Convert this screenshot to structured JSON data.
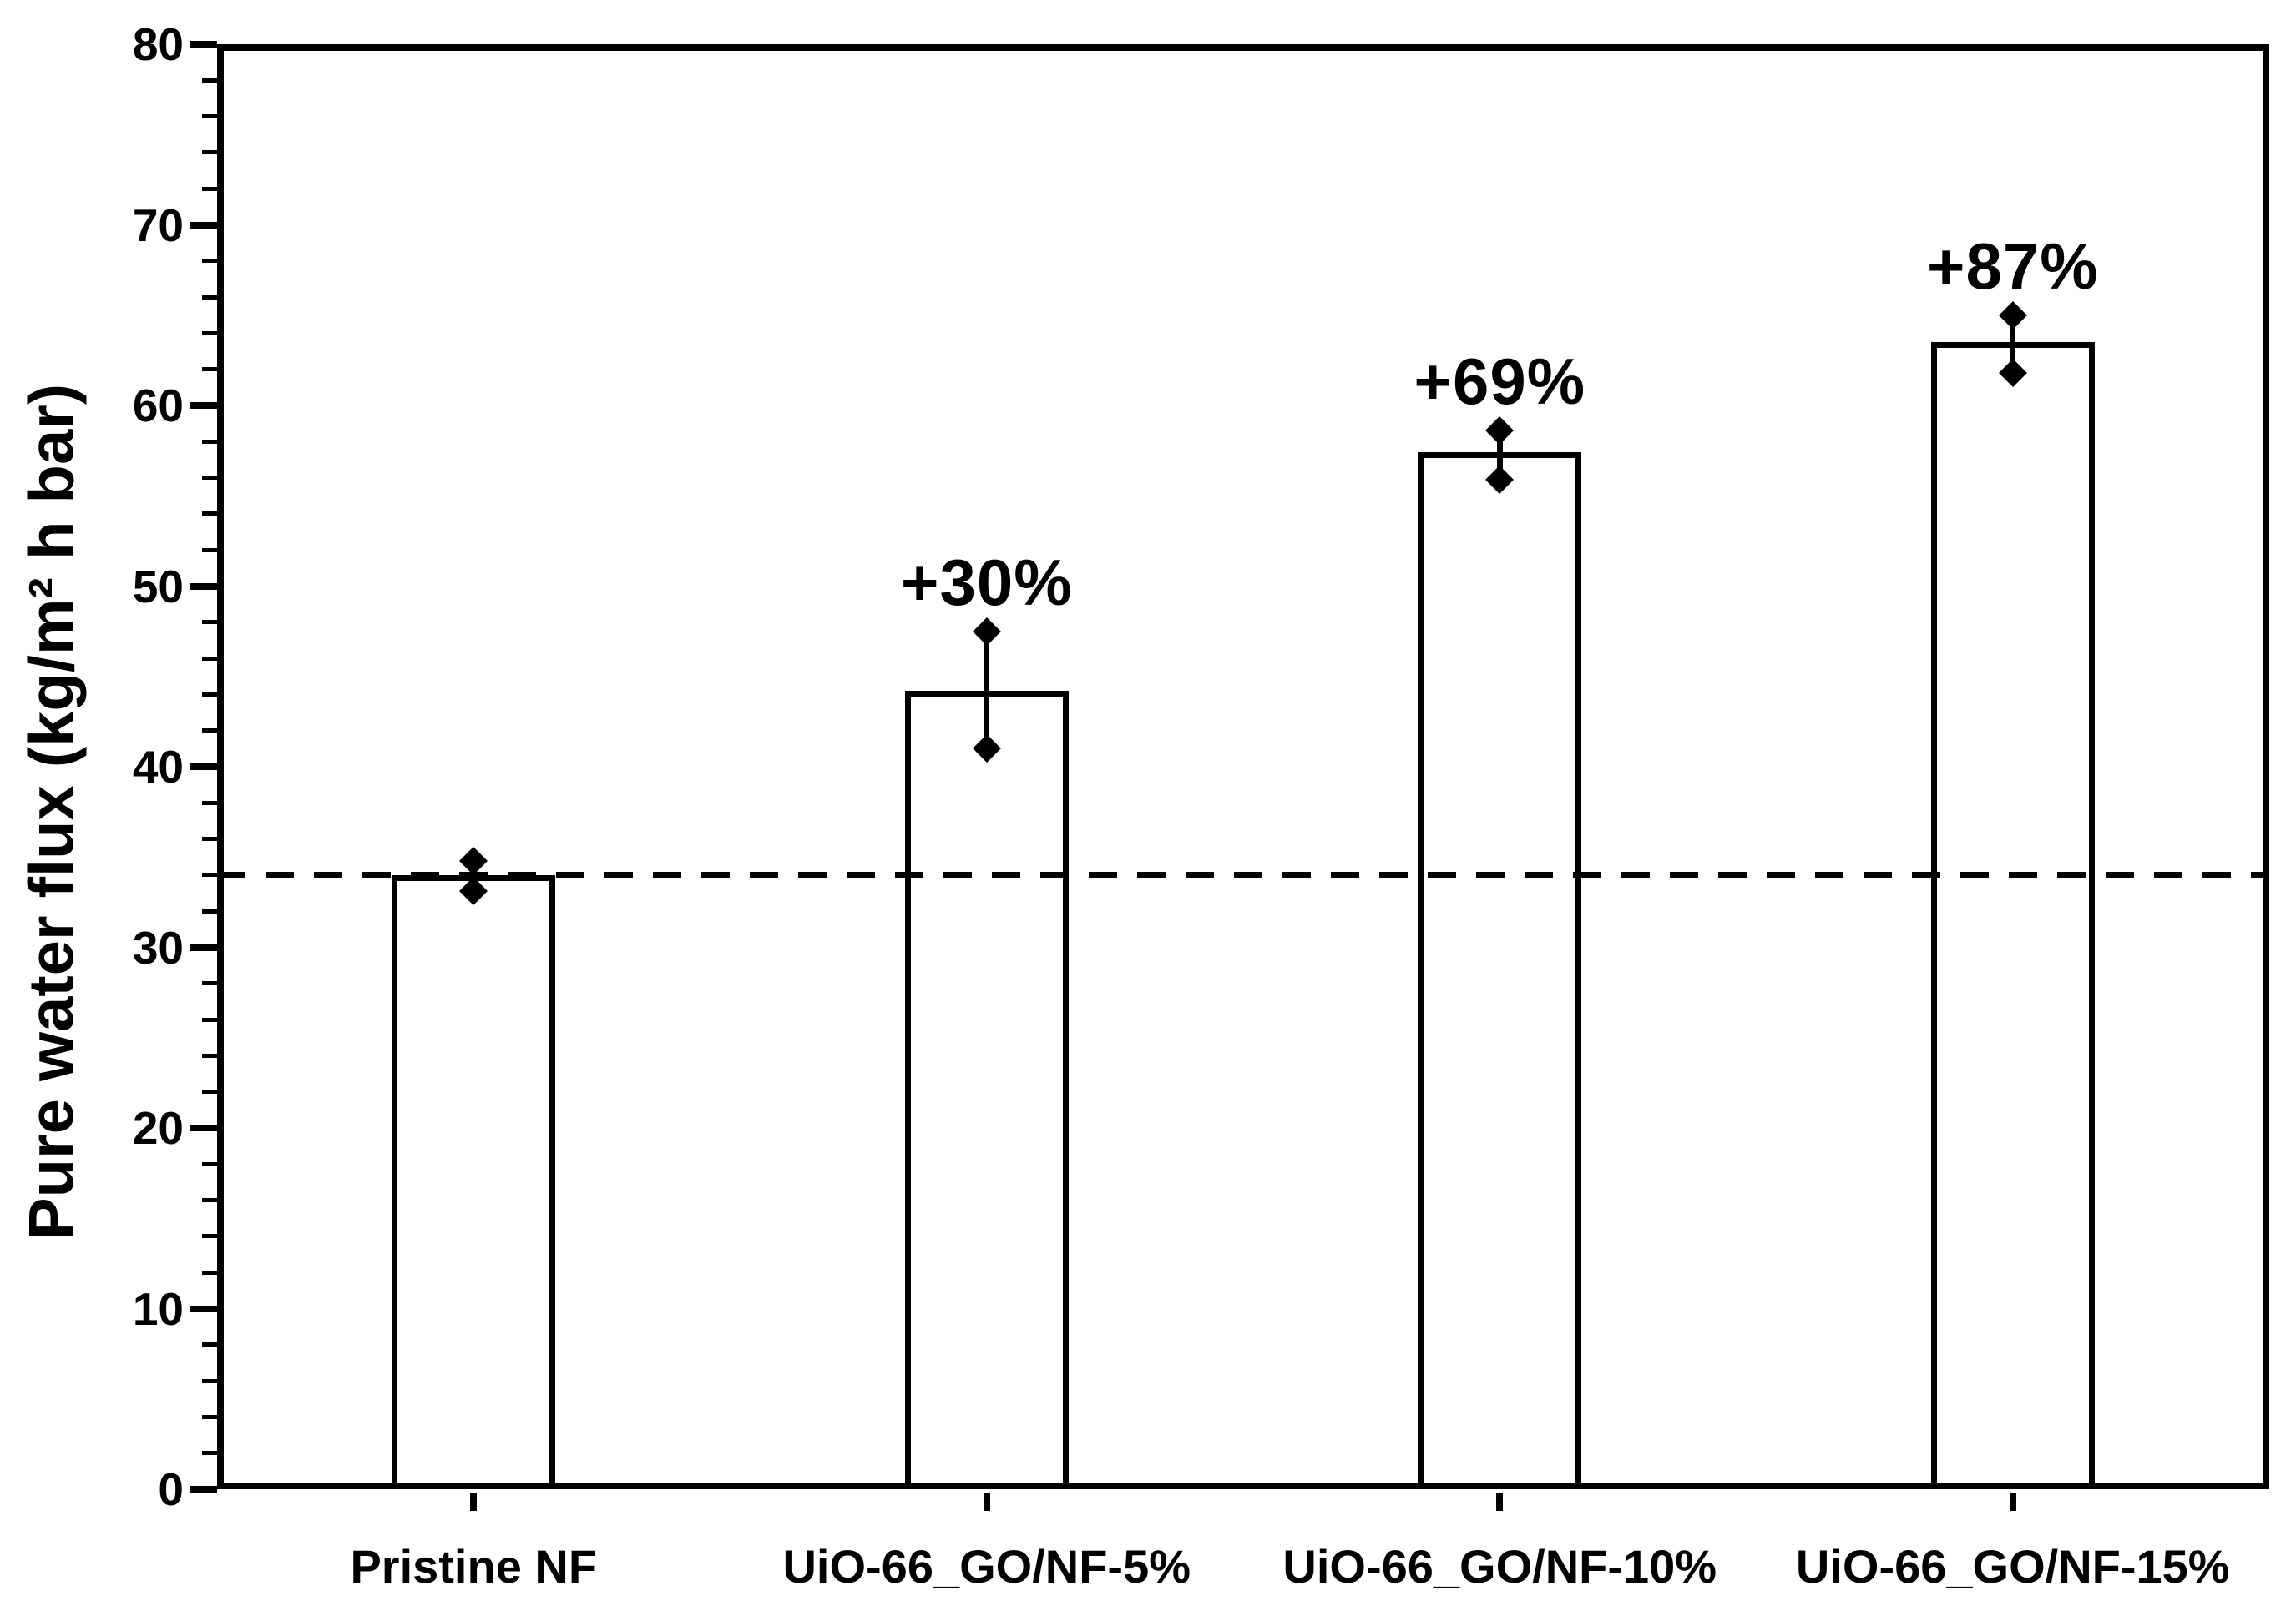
{
  "figure": {
    "background_color": "#ffffff",
    "foreground_color": "#000000"
  },
  "chart_data": {
    "type": "bar",
    "title": "",
    "xlabel": "",
    "ylabel": "Pure water flux (kg/m² h bar)",
    "ylim": [
      0,
      80
    ],
    "ytick_major_step": 10,
    "ytick_minor_step": 2,
    "yticks": [
      0,
      10,
      20,
      30,
      40,
      50,
      60,
      70,
      80
    ],
    "grid": false,
    "legend_position": "none",
    "categories": [
      "Pristine NF",
      "UiO-66_GO/NF-5%",
      "UiO-66_GO/NF-10%",
      "UiO-66_GO/NF-15%"
    ],
    "series": [
      {
        "name": "Pure water flux",
        "values": [
          34.0,
          44.2,
          57.4,
          63.5
        ],
        "error_high": [
          34.8,
          47.5,
          58.6,
          65.0
        ],
        "error_low": [
          33.1,
          41.0,
          55.9,
          61.8
        ]
      }
    ],
    "annotations": [
      "",
      "+30%",
      "+69%",
      "+87%"
    ],
    "baseline": {
      "value": 34.0,
      "style": "dashed",
      "color": "#000000"
    },
    "bar_style": {
      "fill": "#ffffff",
      "stroke": "#000000",
      "marker": "diamond"
    }
  }
}
